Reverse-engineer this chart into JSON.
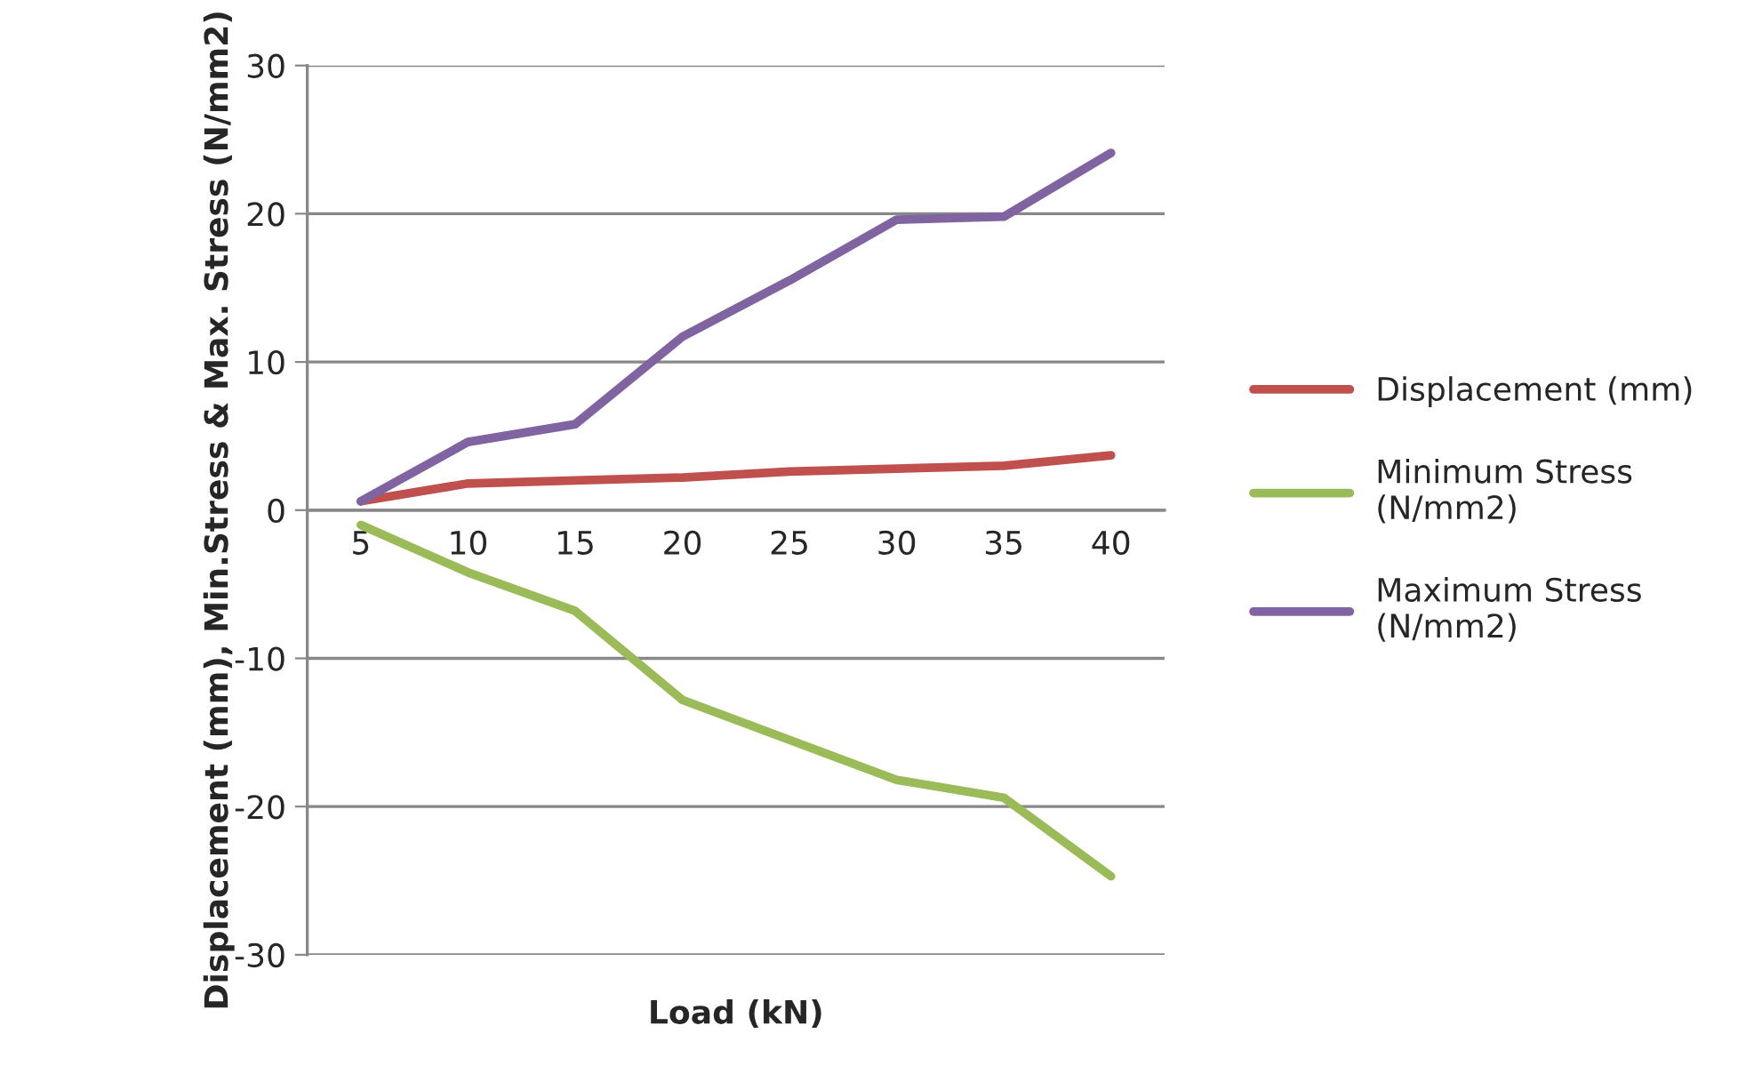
{
  "chart_data": {
    "type": "line",
    "xlabel": "Load (kN)",
    "ylabel": "Displacement (mm), Min.Stress & Max. Stress (N/mm2)",
    "categories": [
      "5",
      "10",
      "15",
      "20",
      "25",
      "30",
      "35",
      "40"
    ],
    "series": [
      {
        "name": "Displacement (mm)",
        "color": "#c0504d",
        "values": [
          0.6,
          1.8,
          2.0,
          2.2,
          2.6,
          2.8,
          3.0,
          3.7
        ]
      },
      {
        "name": "Minimum Stress (N/mm2)",
        "color": "#9bbb59",
        "values": [
          -1.0,
          -4.2,
          -6.8,
          -12.8,
          -15.5,
          -18.2,
          -19.4,
          -24.7
        ]
      },
      {
        "name": "Maximum Stress (N/mm2)",
        "color": "#8064a2",
        "values": [
          0.6,
          4.6,
          5.8,
          11.7,
          15.5,
          19.6,
          19.8,
          24.1
        ]
      }
    ],
    "ylim": [
      -30,
      30
    ],
    "yticks": [
      -30,
      -20,
      -10,
      0,
      10,
      20,
      30
    ],
    "grid": "y",
    "legend": "right",
    "marker": "none",
    "line_style": "solid"
  }
}
